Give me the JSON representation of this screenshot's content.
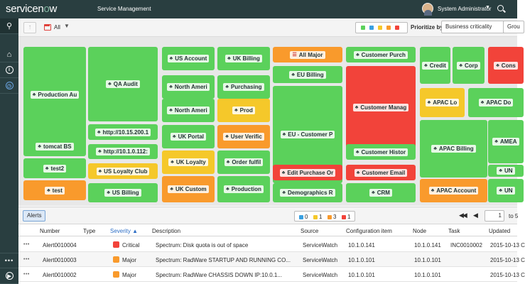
{
  "header": {
    "logo_text": "servicenow",
    "app_title": "Service Management",
    "user_name": "System Administrator"
  },
  "rail": [
    "filter-icon",
    "home-icon",
    "info-icon",
    "clock-icon",
    "more-icon",
    "play-icon"
  ],
  "toolbar": {
    "filter_value": "All",
    "prioritize_label": "Prioritize by:",
    "prioritize_value": "Business criticality",
    "group_label": "Grou",
    "legend_colors": [
      "#5bd15b",
      "#3aa0e0",
      "#f5c82a",
      "#f99a2c",
      "#f2433a"
    ]
  },
  "colors": {
    "green": "#5bd15b",
    "red": "#f2433a",
    "yellow": "#f5c82a",
    "orange": "#f99a2c",
    "blue": "#3aa0e0"
  },
  "treemap": [
    {
      "label": "Production Au",
      "status": "green"
    },
    {
      "label": "tomcat BS",
      "status": "green"
    },
    {
      "label": "test2",
      "status": "green"
    },
    {
      "label": "test",
      "status": "orange"
    },
    {
      "label": "QA Audit",
      "status": "green"
    },
    {
      "label": "http://10.15.200.1",
      "status": "green"
    },
    {
      "label": "http://10.1.0.112:",
      "status": "green"
    },
    {
      "label": "US Loyalty Club",
      "status": "yellow"
    },
    {
      "label": "US Billing",
      "status": "green"
    },
    {
      "label": "US Account",
      "status": "green"
    },
    {
      "label": "North Ameri",
      "status": "green"
    },
    {
      "label": "North Ameri",
      "status": "green"
    },
    {
      "label": "UK Portal",
      "status": "green"
    },
    {
      "label": "UK Loyalty",
      "status": "yellow"
    },
    {
      "label": "UK Custom",
      "status": "orange"
    },
    {
      "label": "UK Billing",
      "status": "green"
    },
    {
      "label": "Purchasing",
      "status": "green"
    },
    {
      "label": "Prod",
      "status": "yellow"
    },
    {
      "label": "User Verific",
      "status": "orange"
    },
    {
      "label": "Order fulfil",
      "status": "green"
    },
    {
      "label": "Production",
      "status": "green"
    },
    {
      "label": "All Major",
      "status": "orange"
    },
    {
      "label": "EU Billing",
      "status": "green"
    },
    {
      "label": "EU - Customer P",
      "status": "green"
    },
    {
      "label": "Edit Purchase Or",
      "status": "red"
    },
    {
      "label": "Demographics R",
      "status": "green"
    },
    {
      "label": "Customer Purch",
      "status": "green"
    },
    {
      "label": "Customer Manag",
      "status": "red"
    },
    {
      "label": "Customer Histor",
      "status": "green"
    },
    {
      "label": "Customer Email",
      "status": "red"
    },
    {
      "label": "CRM",
      "status": "green"
    },
    {
      "label": "Credit",
      "status": "green"
    },
    {
      "label": "Corp",
      "status": "green"
    },
    {
      "label": "Cons",
      "status": "red"
    },
    {
      "label": "APAC Lo",
      "status": "yellow"
    },
    {
      "label": "APAC Do",
      "status": "green"
    },
    {
      "label": "APAC Billing",
      "status": "green"
    },
    {
      "label": "AMEA",
      "status": "green"
    },
    {
      "label": "UN",
      "status": "green"
    },
    {
      "label": "APAC Account",
      "status": "orange"
    },
    {
      "label": "UN",
      "status": "green"
    }
  ],
  "alerts_bar": {
    "tab_label": "Alerts",
    "counts": [
      {
        "value": "0",
        "color": "#3aa0e0"
      },
      {
        "value": "1",
        "color": "#f5c82a"
      },
      {
        "value": "3",
        "color": "#f99a2c"
      },
      {
        "value": "1",
        "color": "#f2433a"
      }
    ],
    "page_value": "1",
    "page_of": "to 5"
  },
  "table": {
    "columns": [
      "Number",
      "Type",
      "Severity",
      "Description",
      "Source",
      "Configuration item",
      "Node",
      "Task",
      "Updated"
    ],
    "sort_indicator": "▲",
    "rows": [
      {
        "number": "Alert0010004",
        "type": "",
        "severity": "Critical",
        "severity_color": "#f2433a",
        "description": "Spectrum: Disk quota is out of space",
        "source": "ServiceWatch",
        "ci": "10.1.0.141",
        "node": "10.1.0.141",
        "task": "INC0010002",
        "updated": "2015-10-13 C"
      },
      {
        "number": "Alert0010003",
        "type": "",
        "severity": "Major",
        "severity_color": "#f99a2c",
        "description": "Spectrum: RadWare STARTUP AND RUNNING CO...",
        "source": "ServiceWatch",
        "ci": "10.1.0.101",
        "node": "10.1.0.101",
        "task": "",
        "updated": "2015-10-13 C"
      },
      {
        "number": "Alert0010002",
        "type": "",
        "severity": "Major",
        "severity_color": "#f99a2c",
        "description": "Spectrum: RadWare CHASSIS DOWN IP:10.0.1...",
        "source": "ServiceWatch",
        "ci": "10.1.0.101",
        "node": "10.1.0.101",
        "task": "",
        "updated": "2015-10-13 C"
      }
    ]
  }
}
